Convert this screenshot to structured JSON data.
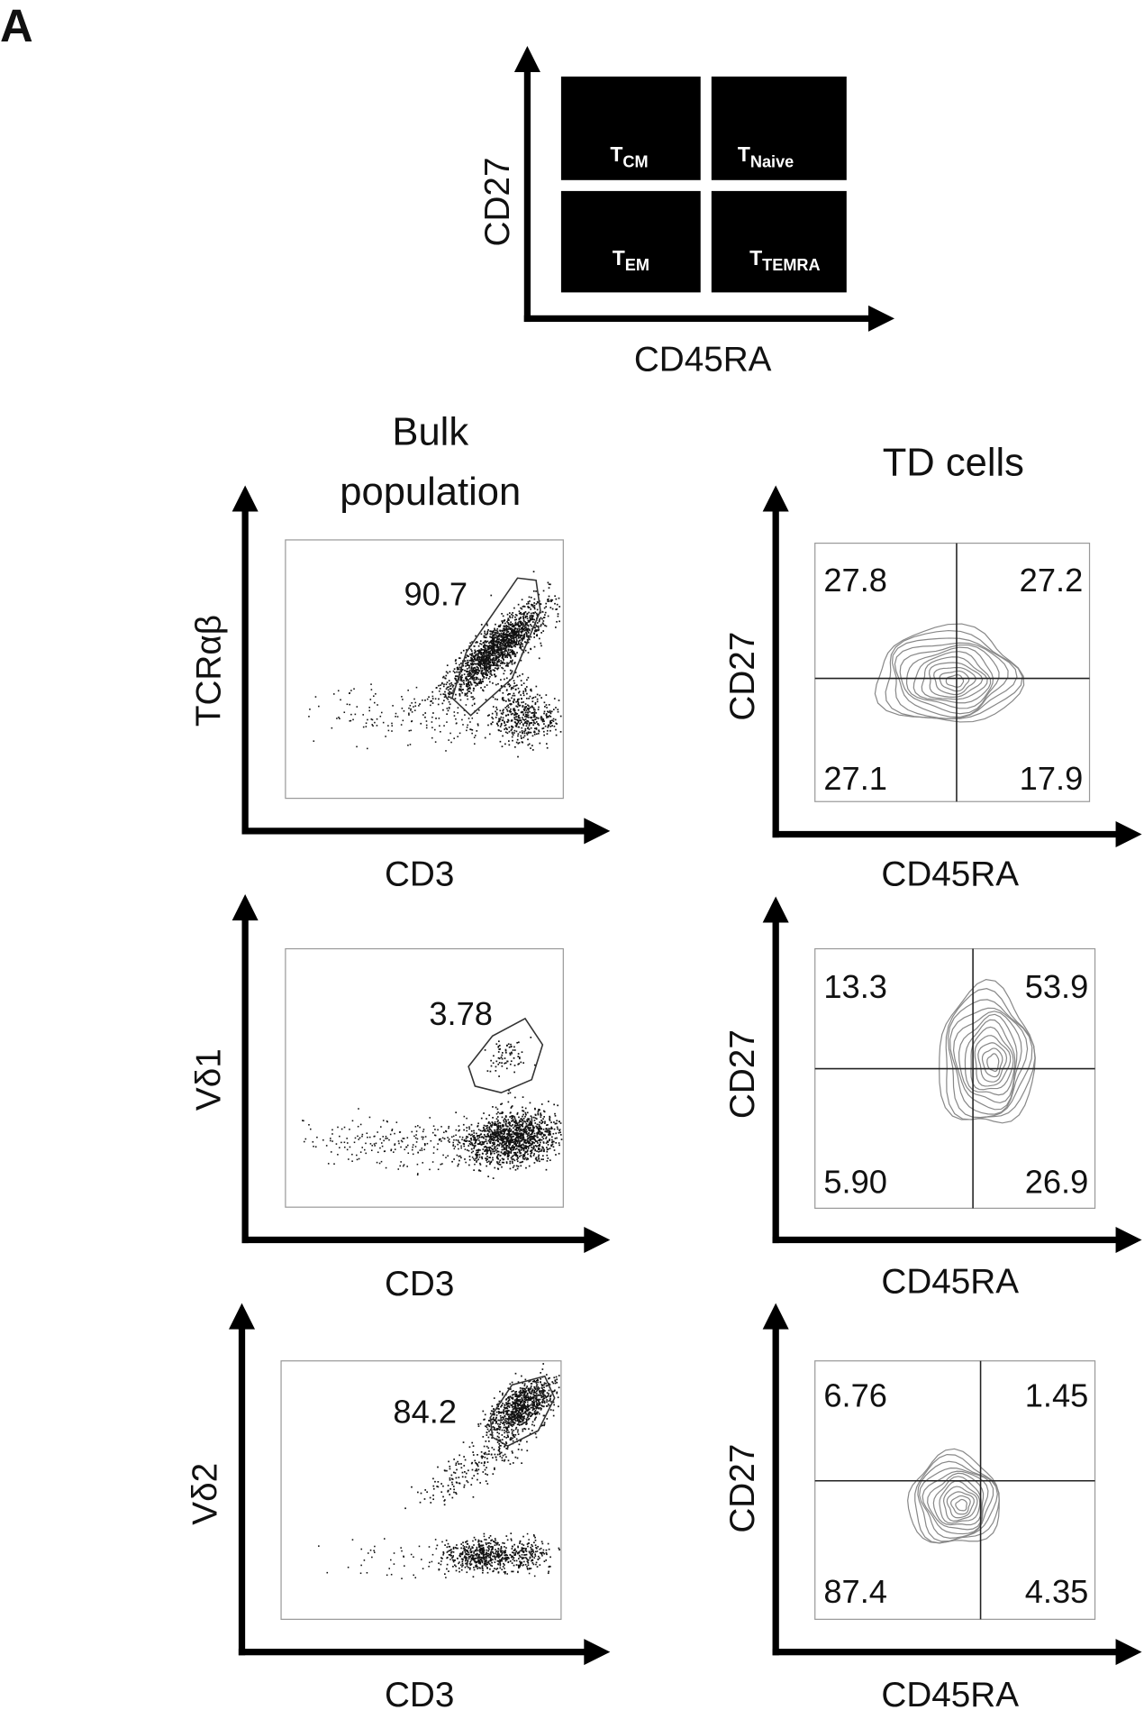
{
  "panel_label": "A",
  "schematic": {
    "x_label": "CD45RA",
    "y_label": "CD27",
    "quadrants": [
      {
        "main": "T",
        "sub": "CM"
      },
      {
        "main": "T",
        "sub": "Naive"
      },
      {
        "main": "T",
        "sub": "EM"
      },
      {
        "main": "T",
        "sub": "TEMRA"
      }
    ]
  },
  "column_titles": {
    "left_line1": "Bulk",
    "left_line2": "population",
    "right": "TD cells"
  },
  "chart_data": [
    {
      "type": "scatter",
      "title": "",
      "xlabel": "CD3",
      "ylabel": "TCRαβ",
      "gate_value": "90.7"
    },
    {
      "type": "scatter",
      "title": "",
      "xlabel": "CD3",
      "ylabel": "Vδ1",
      "gate_value": "3.78"
    },
    {
      "type": "scatter",
      "title": "",
      "xlabel": "CD3",
      "ylabel": "Vδ2",
      "gate_value": "84.2"
    },
    {
      "type": "contour",
      "title": "",
      "xlabel": "CD45RA",
      "ylabel": "CD27",
      "quadrants": {
        "upper_left": "27.8",
        "upper_right": "27.2",
        "lower_left": "27.1",
        "lower_right": "17.9"
      }
    },
    {
      "type": "contour",
      "title": "",
      "xlabel": "CD45RA",
      "ylabel": "CD27",
      "quadrants": {
        "upper_left": "13.3",
        "upper_right": "53.9",
        "lower_left": "5.90",
        "lower_right": "26.9"
      }
    },
    {
      "type": "contour",
      "title": "",
      "xlabel": "CD45RA",
      "ylabel": "CD27",
      "quadrants": {
        "upper_left": "6.76",
        "upper_right": "1.45",
        "lower_left": "87.4",
        "lower_right": "4.35"
      }
    }
  ]
}
